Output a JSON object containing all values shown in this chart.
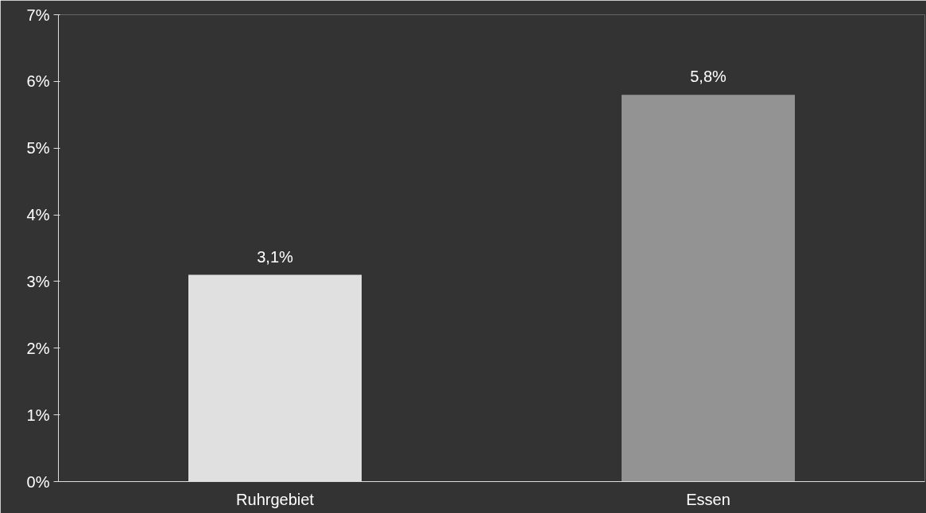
{
  "chart_data": {
    "type": "bar",
    "categories": [
      "Ruhrgebiet",
      "Essen"
    ],
    "values": [
      3.1,
      5.8
    ],
    "colors": [
      "#e0e0e0",
      "#939393"
    ],
    "value_labels": [
      "3,1%",
      "5,8%"
    ],
    "ylim": [
      0,
      7
    ],
    "yticks": [
      {
        "value": 0,
        "label": "0%"
      },
      {
        "value": 1,
        "label": "1%"
      },
      {
        "value": 2,
        "label": "2%"
      },
      {
        "value": 3,
        "label": "3%"
      },
      {
        "value": 4,
        "label": "4%"
      },
      {
        "value": 5,
        "label": "5%"
      },
      {
        "value": 6,
        "label": "6%"
      },
      {
        "value": 7,
        "label": "7%"
      }
    ],
    "grid": false
  }
}
